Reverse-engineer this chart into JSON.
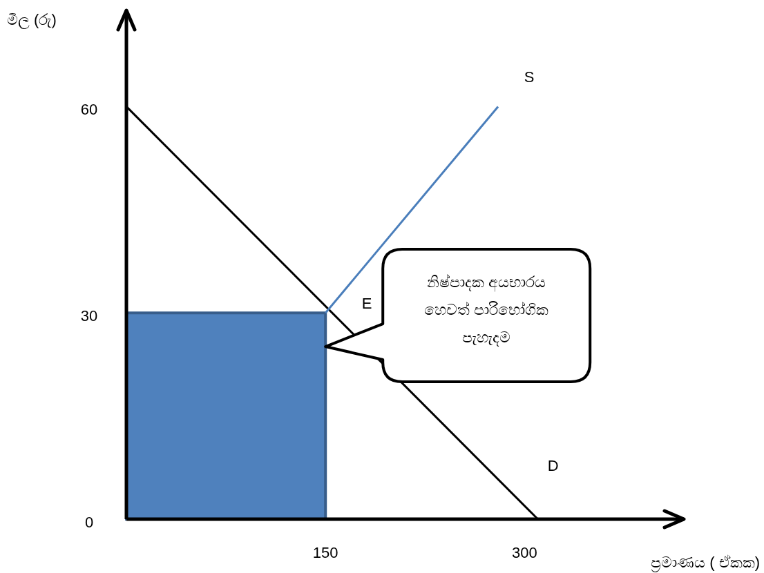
{
  "chart_data": {
    "type": "line",
    "xlabel": "ප්‍රමාණය ( ඒකක)",
    "ylabel": "මිල (රු)",
    "xlim": [
      0,
      420
    ],
    "ylim": [
      0,
      74
    ],
    "xticks": [
      150,
      300
    ],
    "yticks": [
      0,
      30,
      60
    ],
    "grid": false,
    "marker": "none",
    "line_style": "solid",
    "series": [
      {
        "type": "area",
        "color": "#4f81bd",
        "x": [
          0,
          150
        ],
        "values": [
          30,
          30
        ]
      },
      {
        "name": "D",
        "color": "#000000",
        "x": [
          0,
          310
        ],
        "values": [
          60,
          0
        ]
      },
      {
        "name": "S",
        "color": "#4a7ebb",
        "x": [
          150,
          280
        ],
        "values": [
          30,
          60
        ]
      }
    ],
    "annotations": [
      {
        "text": "E",
        "x": 150,
        "y": 30
      },
      "නිෂ්පාදක අයභාරය හෙවත් පාරිභෝගික පැහැදම"
    ]
  }
}
